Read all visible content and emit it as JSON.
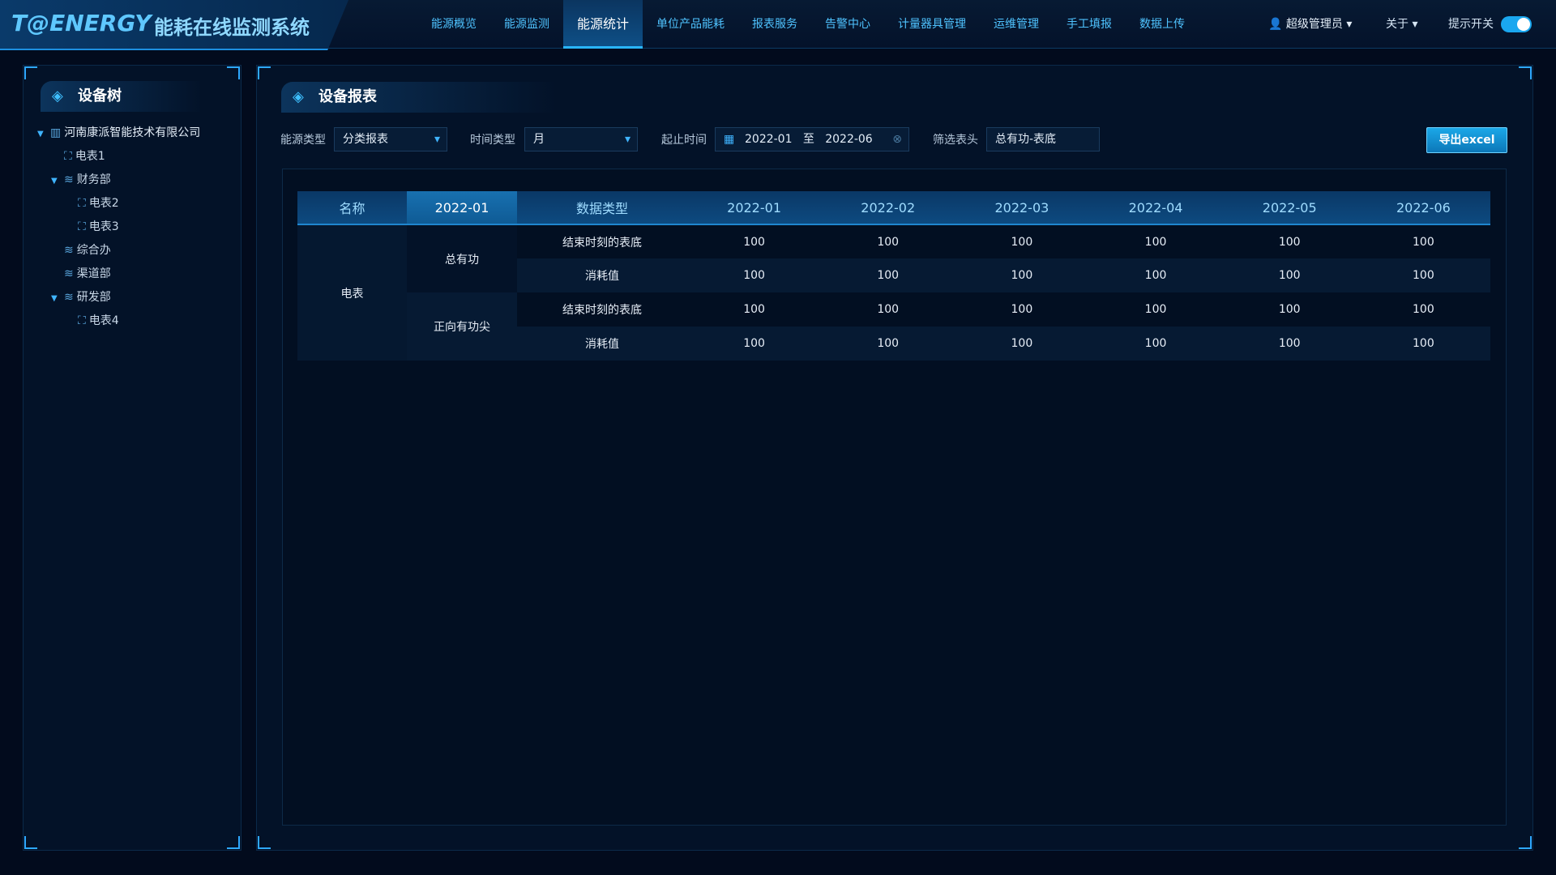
{
  "header": {
    "logo": "T@ENERGY",
    "title": "能耗在线监测系统",
    "nav": [
      "能源概览",
      "能源监测",
      "能源统计",
      "单位产品能耗",
      "报表服务",
      "告警中心",
      "计量器具管理",
      "运维管理",
      "手工填报",
      "数据上传"
    ],
    "user": "超级管理员",
    "about": "关于",
    "tip_switch": "提示开关"
  },
  "sidebar": {
    "title": "设备树",
    "tree": {
      "label": "河南康派智能技术有限公司",
      "children": [
        {
          "label": "电表1"
        },
        {
          "label": "财务部",
          "children": [
            {
              "label": "电表2"
            },
            {
              "label": "电表3"
            }
          ]
        },
        {
          "label": "综合办"
        },
        {
          "label": "渠道部"
        },
        {
          "label": "研发部",
          "children": [
            {
              "label": "电表4"
            }
          ]
        }
      ]
    }
  },
  "panel": {
    "title": "设备报表",
    "filters": [
      {
        "label": "能源类型",
        "value": "分类报表"
      },
      {
        "label": "时间类型",
        "value": "月"
      },
      {
        "label": "起止时间",
        "start": "2022-01",
        "separator": "至",
        "end": "2022-06"
      },
      {
        "label": "筛选表头",
        "value": "总有功-表底"
      }
    ],
    "export": "导出excel"
  },
  "table": {
    "headers": [
      "名称",
      "2022-01",
      "数据类型",
      "2022-01",
      "2022-02",
      "2022-03",
      "2022-04",
      "2022-05",
      "2022-06"
    ],
    "name": "电表",
    "groups": [
      {
        "label": "总有功",
        "rows": [
          {
            "type": "结束时刻的表底",
            "values": [
              100,
              100,
              100,
              100,
              100,
              100
            ]
          },
          {
            "type": "消耗值",
            "values": [
              100,
              100,
              100,
              100,
              100,
              100
            ]
          }
        ]
      },
      {
        "label": "正向有功尖",
        "rows": [
          {
            "type": "结束时刻的表底",
            "values": [
              100,
              100,
              100,
              100,
              100,
              100
            ]
          },
          {
            "type": "消耗值",
            "values": [
              100,
              100,
              100,
              100,
              100,
              100
            ]
          }
        ]
      }
    ]
  }
}
